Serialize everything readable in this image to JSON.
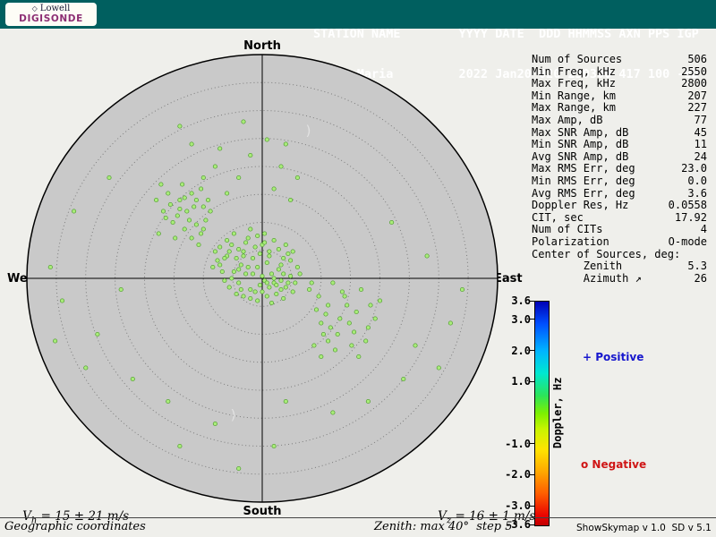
{
  "header": {
    "logo": {
      "diamond": "◇",
      "name_top": "Lowell",
      "name_bottom": "DIGISONDE"
    },
    "row1": "STATION NAME        YYYY DATE  DDD HHMMSS AXN PPS IGP",
    "row2": "Santa Maria         2022 Jan20 020 230300 417 100 -8D"
  },
  "compass": {
    "north": "North",
    "south": "South",
    "west": "West",
    "east": "East"
  },
  "stats": {
    "rows": [
      {
        "label": "Num of Sources",
        "value": "506"
      },
      {
        "label": "Min Freq, kHz",
        "value": "2550"
      },
      {
        "label": "Max Freq, kHz",
        "value": "2800"
      },
      {
        "label": "Min Range, km",
        "value": "207"
      },
      {
        "label": "Max Range, km",
        "value": "227"
      },
      {
        "label": "Max Amp, dB",
        "value": "77"
      },
      {
        "label": "Max SNR Amp, dB",
        "value": "45"
      },
      {
        "label": "Min SNR Amp, dB",
        "value": "11"
      },
      {
        "label": "Avg SNR Amp, dB",
        "value": "24"
      },
      {
        "label": "Max RMS Err, deg",
        "value": "23.0"
      },
      {
        "label": "Min RMS Err, deg",
        "value": "0.0"
      },
      {
        "label": "Avg RMS Err, deg",
        "value": "3.6"
      },
      {
        "label": "Doppler Res, Hz",
        "value": "0.0558"
      },
      {
        "label": "CIT, sec",
        "value": "17.92"
      },
      {
        "label": "Num of CITs",
        "value": "4"
      },
      {
        "label": "Polarization",
        "value": "O-mode"
      },
      {
        "label": "Center of Sources, deg:",
        "value": ""
      },
      {
        "label": "        Zenith",
        "value": "5.3"
      },
      {
        "label": "        Azimuth ↗",
        "value": "26"
      }
    ]
  },
  "chart_data": {
    "type": "scatter",
    "projection": "polar skymap, +x = East, +y = South, r=1 at zenith 40°",
    "zenith_max_deg": 40,
    "zenith_step_deg": 5,
    "rings": 8,
    "point_fill": "#a9ec79",
    "point_stroke": "#4f9a30",
    "points": [
      [
        -0.02,
        -0.05
      ],
      [
        0.03,
        -0.1
      ],
      [
        -0.08,
        -0.12
      ],
      [
        0.05,
        0.02
      ],
      [
        -0.12,
        -0.03
      ],
      [
        0.0,
        -0.15
      ],
      [
        -0.05,
        0.05
      ],
      [
        0.08,
        -0.06
      ],
      [
        -0.15,
        -0.1
      ],
      [
        0.02,
        0.08
      ],
      [
        -0.06,
        -0.18
      ],
      [
        0.1,
        0.04
      ],
      [
        -0.18,
        -0.06
      ],
      [
        0.04,
        -0.02
      ],
      [
        -0.1,
        0.02
      ],
      [
        0.01,
        -0.2
      ],
      [
        -0.04,
        -0.09
      ],
      [
        0.07,
        -0.13
      ],
      [
        -0.13,
        -0.15
      ],
      [
        0.12,
        -0.01
      ],
      [
        -0.01,
        0.03
      ],
      [
        -0.07,
        -0.02
      ],
      [
        0.06,
        0.07
      ],
      [
        -0.16,
        0.01
      ],
      [
        0.09,
        -0.09
      ],
      [
        -0.09,
        -0.06
      ],
      [
        0.0,
        -0.01
      ],
      [
        -0.03,
        -0.14
      ],
      [
        0.13,
        0.06
      ],
      [
        -0.2,
        -0.12
      ],
      [
        0.03,
        0.04
      ],
      [
        -0.11,
        -0.09
      ],
      [
        0.08,
        0.01
      ],
      [
        -0.05,
        -0.22
      ],
      [
        0.15,
        -0.05
      ],
      [
        -0.14,
        0.04
      ],
      [
        0.02,
        -0.07
      ],
      [
        -0.08,
        0.08
      ],
      [
        0.11,
        -0.11
      ],
      [
        -0.17,
        -0.03
      ],
      [
        0.05,
        -0.17
      ],
      [
        -0.02,
        0.1
      ],
      [
        -0.12,
        -0.2
      ],
      [
        0.09,
        0.09
      ],
      [
        -0.19,
        -0.08
      ],
      [
        0.01,
        0.01
      ],
      [
        -0.06,
        -0.05
      ],
      [
        0.14,
        0.02
      ],
      [
        -0.1,
        -0.13
      ],
      [
        0.04,
        0.11
      ],
      [
        -0.15,
        -0.17
      ],
      [
        0.07,
        -0.04
      ],
      [
        -0.01,
        -0.11
      ],
      [
        -0.09,
        0.05
      ],
      [
        0.12,
        -0.08
      ],
      [
        -0.21,
        -0.05
      ],
      [
        0.0,
        0.06
      ],
      [
        -0.04,
        -0.02
      ],
      [
        0.1,
        -0.15
      ],
      [
        -0.13,
        0.0
      ],
      [
        0.06,
        0.03
      ],
      [
        -0.07,
        -0.16
      ],
      [
        0.16,
        -0.02
      ],
      [
        -0.11,
        0.07
      ],
      [
        0.03,
        -0.12
      ],
      [
        -0.18,
        -0.14
      ],
      [
        0.08,
        0.05
      ],
      [
        -0.02,
        -0.19
      ],
      [
        0.13,
        -0.12
      ],
      [
        -0.16,
        -0.09
      ],
      [
        0.05,
        0.0
      ],
      [
        -0.1,
        -0.04
      ],
      [
        0.01,
        -0.16
      ],
      [
        -0.05,
        0.09
      ],
      [
        0.11,
        0.02
      ],
      [
        -0.14,
        -0.12
      ],
      [
        0.02,
        0.02
      ],
      [
        -0.08,
        -0.1
      ],
      [
        0.09,
        -0.02
      ],
      [
        -0.03,
        0.06
      ],
      [
        -0.25,
        -0.22
      ],
      [
        -0.32,
        -0.3
      ],
      [
        -0.28,
        -0.35
      ],
      [
        -0.38,
        -0.25
      ],
      [
        -0.22,
        -0.3
      ],
      [
        -0.35,
        -0.35
      ],
      [
        -0.3,
        -0.18
      ],
      [
        -0.42,
        -0.3
      ],
      [
        -0.26,
        -0.4
      ],
      [
        -0.33,
        -0.22
      ],
      [
        -0.4,
        -0.38
      ],
      [
        -0.24,
        -0.26
      ],
      [
        -0.36,
        -0.28
      ],
      [
        -0.29,
        -0.32
      ],
      [
        -0.44,
        -0.2
      ],
      [
        -0.27,
        -0.15
      ],
      [
        -0.34,
        -0.42
      ],
      [
        -0.39,
        -0.33
      ],
      [
        -0.23,
        -0.35
      ],
      [
        -0.31,
        -0.26
      ],
      [
        -0.45,
        -0.35
      ],
      [
        -0.28,
        -0.24
      ],
      [
        -0.37,
        -0.18
      ],
      [
        -0.25,
        -0.32
      ],
      [
        -0.41,
        -0.27
      ],
      [
        -0.3,
        -0.38
      ],
      [
        -0.35,
        -0.31
      ],
      [
        -0.26,
        -0.2
      ],
      [
        -0.43,
        -0.42
      ],
      [
        -0.33,
        -0.36
      ],
      [
        0.2,
        0.05
      ],
      [
        0.28,
        0.12
      ],
      [
        0.35,
        0.08
      ],
      [
        0.25,
        0.2
      ],
      [
        0.32,
        0.25
      ],
      [
        0.4,
        0.15
      ],
      [
        0.22,
        0.3
      ],
      [
        0.3,
        0.02
      ],
      [
        0.45,
        0.22
      ],
      [
        0.27,
        0.16
      ],
      [
        0.38,
        0.3
      ],
      [
        0.24,
        0.08
      ],
      [
        0.33,
        0.18
      ],
      [
        0.42,
        0.05
      ],
      [
        0.26,
        0.25
      ],
      [
        0.36,
        0.12
      ],
      [
        0.48,
        0.18
      ],
      [
        0.23,
        0.14
      ],
      [
        0.31,
        0.32
      ],
      [
        0.44,
        0.28
      ],
      [
        0.21,
        0.02
      ],
      [
        0.29,
        0.22
      ],
      [
        0.37,
        0.2
      ],
      [
        0.5,
        0.1
      ],
      [
        0.25,
        0.35
      ],
      [
        0.34,
        0.06
      ],
      [
        0.41,
        0.35
      ],
      [
        0.28,
        0.28
      ],
      [
        0.46,
        0.12
      ],
      [
        0.39,
        0.24
      ],
      [
        -0.1,
        -0.45
      ],
      [
        0.05,
        -0.4
      ],
      [
        -0.2,
        -0.5
      ],
      [
        0.12,
        -0.35
      ],
      [
        -0.05,
        -0.55
      ],
      [
        -0.3,
        -0.6
      ],
      [
        0.08,
        -0.5
      ],
      [
        -0.15,
        -0.38
      ],
      [
        0.02,
        -0.62
      ],
      [
        -0.25,
        -0.45
      ],
      [
        -0.35,
        -0.68
      ],
      [
        0.15,
        -0.45
      ],
      [
        -0.08,
        -0.7
      ],
      [
        -0.18,
        -0.58
      ],
      [
        0.1,
        -0.6
      ],
      [
        -0.8,
        -0.3
      ],
      [
        -0.85,
        0.1
      ],
      [
        -0.7,
        0.25
      ],
      [
        -0.9,
        -0.05
      ],
      [
        -0.65,
        -0.45
      ],
      [
        -0.75,
        0.4
      ],
      [
        -0.6,
        0.05
      ],
      [
        -0.88,
        0.28
      ],
      [
        0.65,
        0.3
      ],
      [
        0.7,
        -0.1
      ],
      [
        0.8,
        0.2
      ],
      [
        0.6,
        0.45
      ],
      [
        0.75,
        0.4
      ],
      [
        0.55,
        -0.25
      ],
      [
        0.85,
        0.05
      ],
      [
        -0.4,
        0.55
      ],
      [
        -0.2,
        0.65
      ],
      [
        0.1,
        0.55
      ],
      [
        0.3,
        0.6
      ],
      [
        -0.55,
        0.45
      ],
      [
        0.05,
        0.75
      ],
      [
        -0.1,
        0.85
      ],
      [
        0.45,
        0.55
      ],
      [
        -0.35,
        0.75
      ]
    ],
    "arc_markers": [
      {
        "x": 0.18,
        "y": -0.64,
        "glyph": ")"
      },
      {
        "x": -0.14,
        "y": 0.63,
        "glyph": ")"
      }
    ],
    "doppler_colorbar": {
      "label": "Doppler, Hz",
      "min": -3.6,
      "max": 3.6,
      "ticks": [
        3.6,
        3.0,
        2.0,
        1.0,
        -1.0,
        -2.0,
        -3.0,
        -3.6
      ],
      "positive_label": "+ Positive",
      "negative_label": "o Negative"
    }
  },
  "footer": {
    "vh": {
      "v": "V",
      "sub": "h",
      "rest": " = 15 ± 21 m/s"
    },
    "vz": {
      "v": "V",
      "sub": "z",
      "rest": " = 16 ± 1 m/s"
    },
    "coords_label": "Geographic coordinates",
    "zenith_note": "Zenith: max 40°  step 5°",
    "version": "ShowSkymap v 1.0  SD v 5.1"
  },
  "colors": {
    "header_bg": "#005f5f",
    "logo_brand": "#8c2e74",
    "circle_fill": "#c9c9c9",
    "point_fill": "#a9ec79",
    "point_stroke": "#4f9a30",
    "positive_text": "#1717cd",
    "negative_text": "#cf1515"
  }
}
